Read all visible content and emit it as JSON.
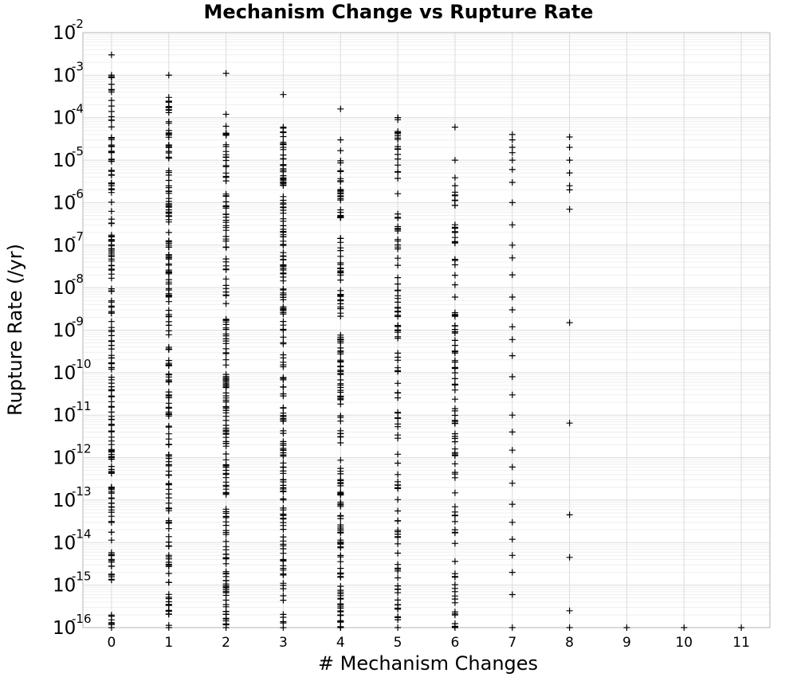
{
  "chart_data": {
    "type": "scatter",
    "title": "Mechanism Change vs Rupture Rate",
    "xlabel": "# Mechanism Changes",
    "ylabel": "Rupture Rate (/yr)",
    "xlim": [
      -0.5,
      11.5
    ],
    "ylim": [
      1e-16,
      0.01
    ],
    "yscale": "log",
    "grid": true,
    "marker": "+",
    "x_ticks": [
      "0",
      "1",
      "2",
      "3",
      "4",
      "5",
      "6",
      "7",
      "8",
      "9",
      "10",
      "11"
    ],
    "y_ticks": [
      {
        "base": "10",
        "exp": "-2"
      },
      {
        "base": "10",
        "exp": "-3"
      },
      {
        "base": "10",
        "exp": "-4"
      },
      {
        "base": "10",
        "exp": "-5"
      },
      {
        "base": "10",
        "exp": "-6"
      },
      {
        "base": "10",
        "exp": "-7"
      },
      {
        "base": "10",
        "exp": "-8"
      },
      {
        "base": "10",
        "exp": "-9"
      },
      {
        "base": "10",
        "exp": "-10"
      },
      {
        "base": "10",
        "exp": "-11"
      },
      {
        "base": "10",
        "exp": "-12"
      },
      {
        "base": "10",
        "exp": "-13"
      },
      {
        "base": "10",
        "exp": "-14"
      },
      {
        "base": "10",
        "exp": "-15"
      },
      {
        "base": "10",
        "exp": "-16"
      }
    ],
    "points": [
      {
        "x": 0,
        "y_dense_range": [
          1e-16,
          0.001
        ],
        "y_max": 0.003
      },
      {
        "x": 1,
        "y_dense_range": [
          1e-16,
          0.0003
        ],
        "y_max": 0.001
      },
      {
        "x": 2,
        "y_dense_range": [
          1e-16,
          0.00012
        ],
        "y_max": 0.0011
      },
      {
        "x": 3,
        "y_dense_range": [
          1e-16,
          6e-05
        ],
        "y_max": 0.00035
      },
      {
        "x": 4,
        "y_dense_range": [
          1e-16,
          3e-05
        ],
        "y_max": 0.00016
      },
      {
        "x": 5,
        "y_dense_range": [
          1e-16,
          0.0001
        ],
        "y_max": 0.0001
      },
      {
        "x": 6,
        "y_dense_range": [
          1e-16,
          1e-05
        ],
        "y_max": 6e-05
      },
      {
        "x": 7,
        "y_values": [
          4e-05,
          3e-05,
          2e-05,
          1.5e-05,
          1e-05,
          6e-06,
          3e-06,
          1e-06,
          3e-07,
          1e-07,
          5e-08,
          2e-08,
          6e-09,
          3e-09,
          1.2e-09,
          6e-10,
          2.5e-10,
          8e-11,
          3e-11,
          1e-11,
          4e-12,
          1.5e-12,
          6e-13,
          2.5e-13,
          8e-14,
          3e-14,
          1.2e-14,
          5e-15,
          2e-15,
          6e-16,
          1e-16
        ]
      },
      {
        "x": 8,
        "y_values": [
          3.5e-05,
          2e-05,
          1e-05,
          5e-06,
          2.5e-06,
          2e-06,
          7e-07,
          1.5e-09,
          6.5e-12,
          4.5e-14,
          4.5e-15,
          2.5e-16,
          1e-16
        ]
      },
      {
        "x": 9,
        "y_values": [
          1e-16
        ]
      },
      {
        "x": 10,
        "y_values": [
          1e-16
        ]
      },
      {
        "x": 11,
        "y_values": [
          1e-16
        ]
      }
    ]
  }
}
